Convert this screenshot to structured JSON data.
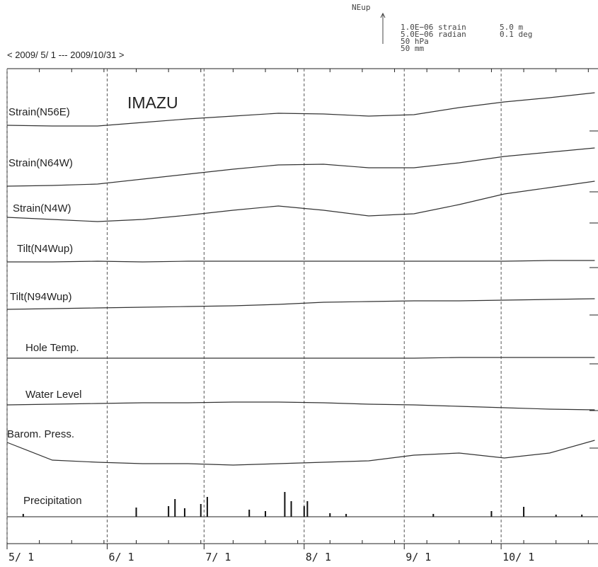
{
  "chart_data": {
    "type": "line",
    "title": "IMAZU",
    "subtitle": "< 2009/ 5/ 1 --- 2009/10/31 >",
    "xlim": [
      0,
      183
    ],
    "xticks": [
      {
        "value": 0,
        "label": "5/ 1"
      },
      {
        "value": 31,
        "label": "6/ 1"
      },
      {
        "value": 61,
        "label": "7/ 1"
      },
      {
        "value": 92,
        "label": "8/ 1"
      },
      {
        "value": 123,
        "label": "9/ 1"
      },
      {
        "value": 153,
        "label": "10/ 1"
      }
    ],
    "grid": true,
    "x": [
      0,
      14,
      28,
      42,
      56,
      70,
      84,
      98,
      112,
      126,
      140,
      154,
      168,
      182
    ],
    "series": [
      {
        "name": "Strain(N56E)",
        "color": "#333333",
        "values": [
          0,
          -0.1,
          -0.1,
          0.4,
          0.9,
          1.3,
          1.7,
          1.6,
          1.3,
          1.5,
          2.5,
          3.3,
          3.9,
          4.6
        ]
      },
      {
        "name": "Strain(N64W)",
        "color": "#333333",
        "values": [
          0,
          0.1,
          0.3,
          1.0,
          1.7,
          2.4,
          3.0,
          3.1,
          2.6,
          2.6,
          3.3,
          4.2,
          4.8,
          5.4
        ]
      },
      {
        "name": "Strain(N4W)",
        "color": "#333333",
        "values": [
          0,
          -0.3,
          -0.6,
          -0.3,
          0.3,
          1.0,
          1.6,
          1.0,
          0.2,
          0.5,
          1.8,
          3.3,
          4.2,
          5.1
        ]
      },
      {
        "name": "Tilt(N4Wup)",
        "color": "#333333",
        "values": [
          0,
          0,
          0.1,
          0,
          0.1,
          0.1,
          0.1,
          0.1,
          0.1,
          0.1,
          0.1,
          0.1,
          0.2,
          0.2
        ]
      },
      {
        "name": "Tilt(N94Wup)",
        "color": "#333333",
        "values": [
          0,
          0.1,
          0.2,
          0.3,
          0.4,
          0.5,
          0.7,
          1.0,
          1.1,
          1.2,
          1.2,
          1.3,
          1.4,
          1.5
        ]
      },
      {
        "name": "Hole Temp.",
        "color": "#333333",
        "values": [
          0,
          0,
          0,
          0,
          0,
          0,
          0,
          0,
          0,
          0,
          0.1,
          0.1,
          0.1,
          0.1
        ]
      },
      {
        "name": "Water Level",
        "color": "#333333",
        "values": [
          0,
          0.1,
          0.2,
          0.3,
          0.3,
          0.4,
          0.4,
          0.3,
          0.1,
          0,
          -0.2,
          -0.4,
          -0.6,
          -0.7
        ]
      },
      {
        "name": "Barom. Press.",
        "color": "#333333",
        "values": [
          0,
          -2.5,
          -2.8,
          -3.0,
          -3.0,
          -3.2,
          -3.0,
          -2.8,
          -2.6,
          -1.8,
          -1.5,
          -2.2,
          -1.5,
          0.3
        ]
      },
      {
        "name": "Precipitation",
        "color": "#111111",
        "x": [
          5,
          40,
          50,
          52,
          55,
          60,
          62,
          75,
          80,
          86,
          88,
          92,
          93,
          100,
          105,
          132,
          150,
          160,
          170,
          178
        ],
        "values": [
          4,
          13,
          15,
          25,
          12,
          18,
          28,
          10,
          8,
          35,
          22,
          15,
          22,
          5,
          4,
          4,
          8,
          14,
          3,
          3
        ]
      }
    ]
  },
  "scale_legend": {
    "direction": "NEup",
    "items": [
      "1.0E−06 strain",
      "5.0E−06 radian",
      "50 hPa",
      "50 mm"
    ],
    "items2": [
      "5.0 m",
      "0.1 deg"
    ]
  }
}
